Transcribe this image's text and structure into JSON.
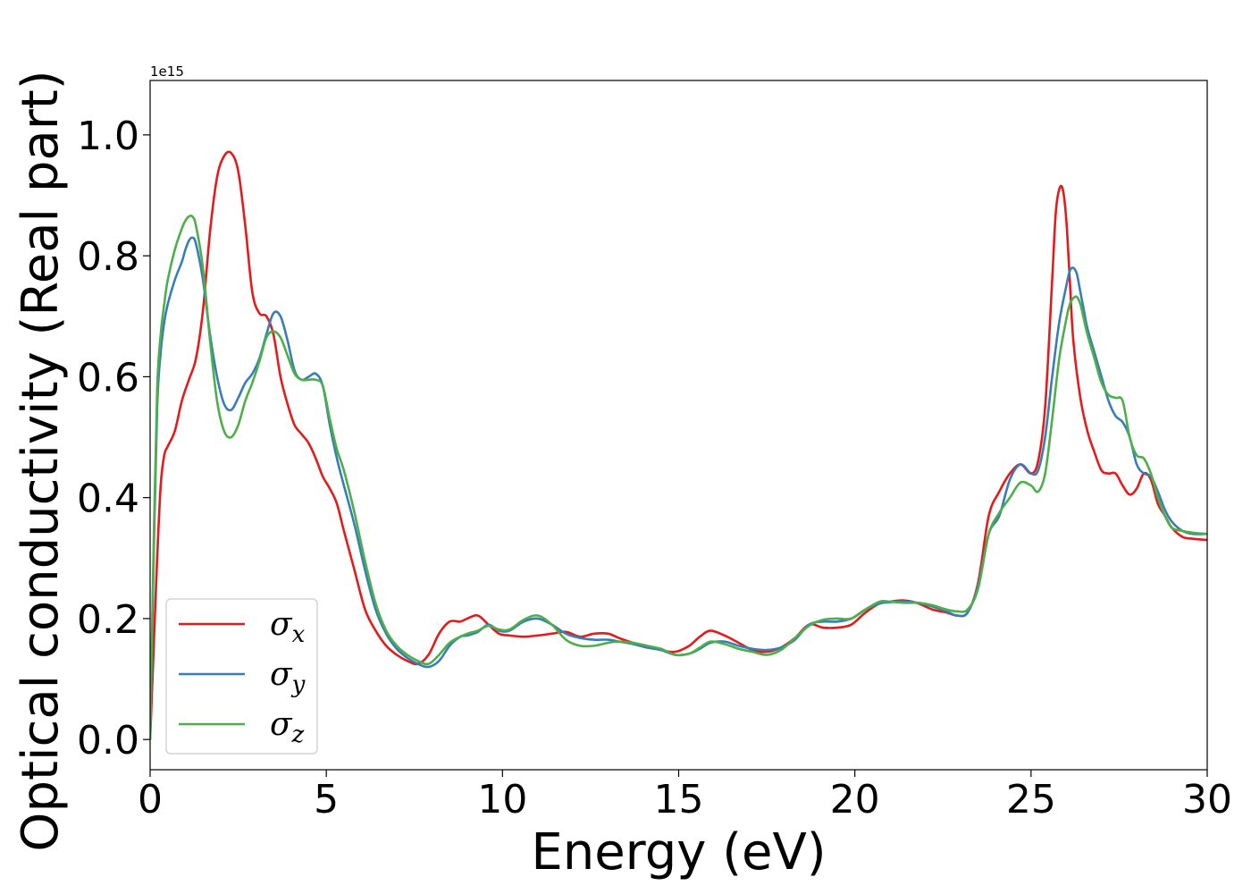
{
  "chart_data": {
    "type": "line",
    "title": "",
    "xlabel": "Energy (eV)",
    "ylabel": "Optical conductivity (Real part)",
    "y_offset_text": "1e15",
    "xlim": [
      0,
      30
    ],
    "ylim": [
      -0.05,
      1.09
    ],
    "xticks": [
      0,
      5,
      10,
      15,
      20,
      25,
      30
    ],
    "xtick_labels": [
      "0",
      "5",
      "10",
      "15",
      "20",
      "25",
      "30"
    ],
    "yticks": [
      0.0,
      0.2,
      0.4,
      0.6,
      0.8,
      1.0
    ],
    "ytick_labels": [
      "0.0",
      "0.2",
      "0.4",
      "0.6",
      "0.8",
      "1.0"
    ],
    "grid": false,
    "legend_position": "lower-left",
    "series": [
      {
        "name": "σx",
        "legend_symbol": "σ",
        "legend_subscript": "x",
        "color": "#e41a1c",
        "x": [
          0,
          0.1,
          0.2,
          0.3,
          0.4,
          0.5,
          0.7,
          0.9,
          1.1,
          1.3,
          1.5,
          1.7,
          1.9,
          2.1,
          2.3,
          2.5,
          2.7,
          2.9,
          3.1,
          3.3,
          3.5,
          3.7,
          3.9,
          4.1,
          4.3,
          4.5,
          4.7,
          4.9,
          5.1,
          5.3,
          5.5,
          5.8,
          6.1,
          6.4,
          6.7,
          7.0,
          7.3,
          7.6,
          7.9,
          8.2,
          8.5,
          8.8,
          9.0,
          9.3,
          9.6,
          9.9,
          10.2,
          10.6,
          11.0,
          11.4,
          11.8,
          12.2,
          12.6,
          13.0,
          13.3,
          13.7,
          14.1,
          14.5,
          14.9,
          15.3,
          15.6,
          15.9,
          16.3,
          16.7,
          17.1,
          17.5,
          17.9,
          18.3,
          18.7,
          19.1,
          19.5,
          19.9,
          20.3,
          20.7,
          21.0,
          21.4,
          21.8,
          22.2,
          22.6,
          22.9,
          23.2,
          23.5,
          23.8,
          24.1,
          24.4,
          24.7,
          25.0,
          25.2,
          25.4,
          25.6,
          25.7,
          25.8,
          25.9,
          26.0,
          26.1,
          26.2,
          26.4,
          26.6,
          26.8,
          27.0,
          27.2,
          27.4,
          27.6,
          27.8,
          28.0,
          28.2,
          28.4,
          28.6,
          28.8,
          29.0,
          29.3,
          29.6,
          30.0
        ],
        "y": [
          0.0,
          0.15,
          0.3,
          0.42,
          0.47,
          0.485,
          0.51,
          0.56,
          0.595,
          0.63,
          0.71,
          0.84,
          0.93,
          0.965,
          0.97,
          0.94,
          0.85,
          0.74,
          0.705,
          0.7,
          0.67,
          0.6,
          0.555,
          0.52,
          0.505,
          0.49,
          0.465,
          0.435,
          0.415,
          0.39,
          0.345,
          0.28,
          0.215,
          0.18,
          0.155,
          0.14,
          0.13,
          0.125,
          0.14,
          0.175,
          0.195,
          0.195,
          0.2,
          0.205,
          0.19,
          0.175,
          0.172,
          0.17,
          0.172,
          0.175,
          0.178,
          0.17,
          0.175,
          0.175,
          0.168,
          0.16,
          0.155,
          0.148,
          0.145,
          0.155,
          0.17,
          0.18,
          0.172,
          0.16,
          0.148,
          0.145,
          0.152,
          0.168,
          0.19,
          0.185,
          0.185,
          0.19,
          0.21,
          0.225,
          0.228,
          0.23,
          0.225,
          0.215,
          0.21,
          0.205,
          0.21,
          0.26,
          0.37,
          0.41,
          0.44,
          0.455,
          0.44,
          0.46,
          0.55,
          0.76,
          0.87,
          0.91,
          0.91,
          0.86,
          0.76,
          0.66,
          0.565,
          0.51,
          0.475,
          0.445,
          0.44,
          0.44,
          0.42,
          0.405,
          0.415,
          0.44,
          0.43,
          0.39,
          0.37,
          0.35,
          0.335,
          0.332,
          0.33
        ]
      },
      {
        "name": "σy",
        "legend_symbol": "σ",
        "legend_subscript": "y",
        "color": "#377eb8",
        "x": [
          0,
          0.1,
          0.2,
          0.3,
          0.4,
          0.5,
          0.7,
          0.9,
          1.0,
          1.1,
          1.2,
          1.3,
          1.5,
          1.7,
          1.9,
          2.1,
          2.3,
          2.5,
          2.7,
          2.9,
          3.1,
          3.3,
          3.5,
          3.7,
          3.9,
          4.1,
          4.3,
          4.5,
          4.7,
          4.9,
          5.1,
          5.3,
          5.5,
          5.8,
          6.1,
          6.4,
          6.7,
          7.0,
          7.3,
          7.6,
          7.9,
          8.2,
          8.5,
          8.8,
          9.0,
          9.3,
          9.6,
          9.9,
          10.2,
          10.6,
          11.0,
          11.4,
          11.8,
          12.2,
          12.6,
          13.0,
          13.3,
          13.7,
          14.1,
          14.5,
          14.9,
          15.3,
          15.6,
          15.9,
          16.3,
          16.7,
          17.1,
          17.5,
          17.9,
          18.3,
          18.7,
          19.1,
          19.5,
          19.9,
          20.3,
          20.7,
          21.0,
          21.4,
          21.8,
          22.2,
          22.6,
          22.9,
          23.2,
          23.5,
          23.8,
          24.1,
          24.4,
          24.7,
          25.0,
          25.2,
          25.4,
          25.6,
          25.8,
          26.0,
          26.1,
          26.2,
          26.3,
          26.4,
          26.5,
          26.6,
          26.8,
          27.0,
          27.2,
          27.4,
          27.6,
          27.8,
          28.0,
          28.2,
          28.4,
          28.6,
          28.8,
          29.0,
          29.3,
          29.6,
          30.0
        ],
        "y": [
          0.0,
          0.3,
          0.55,
          0.64,
          0.69,
          0.72,
          0.76,
          0.79,
          0.81,
          0.825,
          0.83,
          0.82,
          0.76,
          0.67,
          0.6,
          0.555,
          0.545,
          0.565,
          0.59,
          0.605,
          0.63,
          0.67,
          0.705,
          0.7,
          0.66,
          0.61,
          0.595,
          0.6,
          0.605,
          0.585,
          0.52,
          0.465,
          0.42,
          0.355,
          0.28,
          0.215,
          0.175,
          0.15,
          0.135,
          0.125,
          0.12,
          0.13,
          0.155,
          0.17,
          0.172,
          0.178,
          0.19,
          0.18,
          0.18,
          0.195,
          0.2,
          0.19,
          0.175,
          0.168,
          0.165,
          0.165,
          0.162,
          0.158,
          0.152,
          0.148,
          0.14,
          0.142,
          0.15,
          0.16,
          0.162,
          0.155,
          0.15,
          0.148,
          0.152,
          0.165,
          0.19,
          0.195,
          0.195,
          0.2,
          0.215,
          0.225,
          0.227,
          0.228,
          0.226,
          0.22,
          0.212,
          0.205,
          0.21,
          0.255,
          0.34,
          0.37,
          0.43,
          0.455,
          0.44,
          0.445,
          0.5,
          0.6,
          0.69,
          0.75,
          0.775,
          0.78,
          0.77,
          0.74,
          0.71,
          0.68,
          0.64,
          0.6,
          0.56,
          0.535,
          0.525,
          0.5,
          0.455,
          0.44,
          0.435,
          0.41,
          0.38,
          0.36,
          0.345,
          0.34,
          0.34
        ]
      },
      {
        "name": "σz",
        "legend_symbol": "σ",
        "legend_subscript": "z",
        "color": "#4daf4a",
        "x": [
          0,
          0.1,
          0.2,
          0.3,
          0.4,
          0.5,
          0.7,
          0.9,
          1.0,
          1.1,
          1.2,
          1.3,
          1.5,
          1.7,
          1.9,
          2.1,
          2.3,
          2.5,
          2.7,
          2.9,
          3.1,
          3.3,
          3.5,
          3.7,
          3.9,
          4.1,
          4.3,
          4.5,
          4.7,
          4.9,
          5.1,
          5.3,
          5.5,
          5.8,
          6.1,
          6.4,
          6.7,
          7.0,
          7.3,
          7.6,
          7.9,
          8.2,
          8.5,
          8.8,
          9.0,
          9.3,
          9.6,
          9.9,
          10.2,
          10.6,
          11.0,
          11.4,
          11.8,
          12.2,
          12.6,
          13.0,
          13.3,
          13.7,
          14.1,
          14.5,
          14.9,
          15.3,
          15.6,
          15.9,
          16.3,
          16.7,
          17.1,
          17.5,
          17.9,
          18.3,
          18.7,
          19.1,
          19.5,
          19.9,
          20.3,
          20.7,
          21.0,
          21.4,
          21.8,
          22.2,
          22.6,
          22.9,
          23.2,
          23.5,
          23.8,
          24.1,
          24.4,
          24.7,
          25.0,
          25.2,
          25.4,
          25.6,
          25.8,
          26.0,
          26.1,
          26.2,
          26.3,
          26.4,
          26.5,
          26.6,
          26.8,
          27.0,
          27.2,
          27.4,
          27.6,
          27.8,
          28.0,
          28.2,
          28.4,
          28.6,
          28.8,
          29.0,
          29.3,
          29.6,
          30.0
        ],
        "y": [
          0.0,
          0.32,
          0.58,
          0.67,
          0.72,
          0.76,
          0.81,
          0.845,
          0.858,
          0.865,
          0.865,
          0.85,
          0.78,
          0.66,
          0.56,
          0.51,
          0.5,
          0.52,
          0.56,
          0.59,
          0.625,
          0.665,
          0.675,
          0.665,
          0.635,
          0.605,
          0.595,
          0.595,
          0.595,
          0.585,
          0.53,
          0.48,
          0.445,
          0.375,
          0.295,
          0.225,
          0.18,
          0.155,
          0.14,
          0.13,
          0.125,
          0.14,
          0.16,
          0.17,
          0.175,
          0.18,
          0.188,
          0.182,
          0.182,
          0.198,
          0.205,
          0.19,
          0.165,
          0.155,
          0.155,
          0.16,
          0.162,
          0.16,
          0.155,
          0.15,
          0.14,
          0.142,
          0.152,
          0.162,
          0.158,
          0.15,
          0.145,
          0.14,
          0.148,
          0.168,
          0.188,
          0.198,
          0.2,
          0.2,
          0.215,
          0.228,
          0.228,
          0.226,
          0.226,
          0.222,
          0.215,
          0.212,
          0.215,
          0.25,
          0.34,
          0.375,
          0.4,
          0.425,
          0.42,
          0.41,
          0.44,
          0.53,
          0.63,
          0.695,
          0.72,
          0.73,
          0.732,
          0.72,
          0.695,
          0.67,
          0.63,
          0.59,
          0.57,
          0.565,
          0.56,
          0.5,
          0.47,
          0.465,
          0.44,
          0.4,
          0.37,
          0.35,
          0.345,
          0.342,
          0.34
        ]
      }
    ]
  }
}
